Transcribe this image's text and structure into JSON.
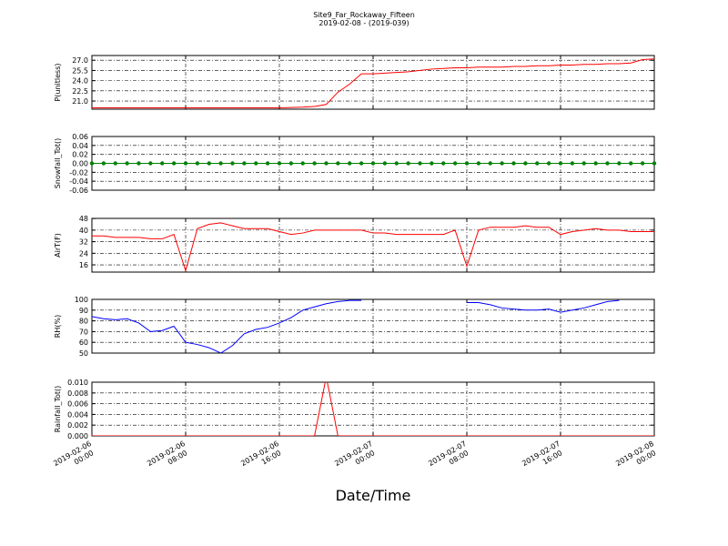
{
  "title": "Site9_Far_Rockaway_Fifteen",
  "subtitle": "2019-02-08 - (2019-039)",
  "xlabel": "Date/Time",
  "x": [
    "2019-02-06 00:00",
    "2019-02-06 01:00",
    "2019-02-06 02:00",
    "2019-02-06 03:00",
    "2019-02-06 04:00",
    "2019-02-06 05:00",
    "2019-02-06 06:00",
    "2019-02-06 07:00",
    "2019-02-06 08:00",
    "2019-02-06 09:00",
    "2019-02-06 10:00",
    "2019-02-06 11:00",
    "2019-02-06 12:00",
    "2019-02-06 13:00",
    "2019-02-06 14:00",
    "2019-02-06 15:00",
    "2019-02-06 16:00",
    "2019-02-06 17:00",
    "2019-02-06 18:00",
    "2019-02-06 19:00",
    "2019-02-06 20:00",
    "2019-02-06 21:00",
    "2019-02-06 22:00",
    "2019-02-06 23:00",
    "2019-02-07 00:00",
    "2019-02-07 01:00",
    "2019-02-07 02:00",
    "2019-02-07 03:00",
    "2019-02-07 04:00",
    "2019-02-07 05:00",
    "2019-02-07 06:00",
    "2019-02-07 07:00",
    "2019-02-07 08:00",
    "2019-02-07 09:00",
    "2019-02-07 10:00",
    "2019-02-07 11:00",
    "2019-02-07 12:00",
    "2019-02-07 13:00",
    "2019-02-07 14:00",
    "2019-02-07 15:00",
    "2019-02-07 16:00",
    "2019-02-07 17:00",
    "2019-02-07 18:00",
    "2019-02-07 19:00",
    "2019-02-07 20:00",
    "2019-02-07 21:00",
    "2019-02-07 22:00",
    "2019-02-07 23:00",
    "2019-02-08 00:00"
  ],
  "xlim": [
    "2019-02-06 00:00",
    "2019-02-08 00:00"
  ],
  "xticks": [
    {
      "value": "2019-02-06 00:00",
      "label": [
        "2019-02-06",
        "00:00"
      ]
    },
    {
      "value": "2019-02-06 08:00",
      "label": [
        "2019-02-06",
        "08:00"
      ]
    },
    {
      "value": "2019-02-06 16:00",
      "label": [
        "2019-02-06",
        "16:00"
      ]
    },
    {
      "value": "2019-02-07 00:00",
      "label": [
        "2019-02-07",
        "00:00"
      ]
    },
    {
      "value": "2019-02-07 08:00",
      "label": [
        "2019-02-07",
        "08:00"
      ]
    },
    {
      "value": "2019-02-07 16:00",
      "label": [
        "2019-02-07",
        "16:00"
      ]
    },
    {
      "value": "2019-02-08 00:00",
      "label": [
        "2019-02-08",
        "00:00"
      ]
    }
  ],
  "chart_data": [
    {
      "type": "line",
      "ylabel": "P(unitless)",
      "color": "#ff0000",
      "grid": true,
      "ylim": [
        19.8,
        27.7
      ],
      "yticks": [
        {
          "value": 21.0,
          "label": "21.0"
        },
        22.5,
        {
          "value": 24.0,
          "label": "24.0"
        },
        25.5,
        {
          "value": 27.0,
          "label": "27.0"
        }
      ],
      "values": [
        20.0,
        20.0,
        20.0,
        20.0,
        20.0,
        20.0,
        20.0,
        20.0,
        20.0,
        20.0,
        20.0,
        20.0,
        20.0,
        20.0,
        20.0,
        20.0,
        20.0,
        20.05,
        20.1,
        20.2,
        20.5,
        22.3,
        23.5,
        25.0,
        25.0,
        25.1,
        25.2,
        25.3,
        25.5,
        25.7,
        25.8,
        25.9,
        25.9,
        26.0,
        26.0,
        26.0,
        26.1,
        26.1,
        26.2,
        26.2,
        26.3,
        26.3,
        26.4,
        26.4,
        26.5,
        26.5,
        26.6,
        27.1,
        27.2
      ]
    },
    {
      "type": "line",
      "ylabel": "Snowfall_Tot()",
      "color": "#008000",
      "marker": "o",
      "grid": true,
      "ylim": [
        -0.06,
        0.06
      ],
      "yticks": [
        -0.06,
        -0.04,
        -0.02,
        {
          "value": 0,
          "label": "0.00"
        },
        0.02,
        0.04,
        0.06
      ],
      "values": [
        0,
        0,
        0,
        0,
        0,
        0,
        0,
        0,
        0,
        0,
        0,
        0,
        0,
        0,
        0,
        0,
        0,
        0,
        0,
        0,
        0,
        0,
        0,
        0,
        0,
        0,
        0,
        0,
        0,
        0,
        0,
        0,
        0,
        0,
        0,
        0,
        0,
        0,
        0,
        0,
        0,
        0,
        0,
        0,
        0,
        0,
        0,
        0,
        0
      ]
    },
    {
      "type": "line",
      "ylabel": "AirT(F)",
      "color": "#ff0000",
      "grid": true,
      "ylim": [
        11,
        48.1
      ],
      "yticks": [
        16,
        24,
        32,
        40,
        48
      ],
      "values": [
        36,
        36,
        35,
        35,
        35,
        34,
        34,
        37,
        12,
        41,
        44,
        45,
        43,
        41,
        41,
        41,
        39,
        37,
        38,
        40,
        40,
        40,
        40,
        40,
        38,
        38,
        37,
        37,
        37,
        37,
        37,
        40,
        15,
        40,
        42,
        42,
        42,
        43,
        42,
        42,
        37,
        39,
        40,
        41,
        40,
        40,
        39,
        39,
        39
      ]
    },
    {
      "type": "line",
      "ylabel": "RH(%)",
      "color": "#0000ff",
      "grid": true,
      "ylim": [
        50,
        100
      ],
      "yticks": [
        50,
        60,
        70,
        80,
        90,
        100
      ],
      "values": [
        84,
        82,
        81,
        82,
        78,
        70,
        71,
        75,
        60,
        58,
        55,
        50,
        57,
        68,
        72,
        74,
        78,
        83,
        90,
        93,
        96,
        98,
        99,
        99,
        null,
        null,
        null,
        null,
        null,
        null,
        null,
        null,
        97,
        97,
        95,
        92,
        91,
        90,
        90,
        91,
        88,
        90,
        92,
        95,
        98,
        99,
        null,
        null,
        null
      ]
    },
    {
      "type": "line",
      "ylabel": "Rainfall_Tot()",
      "color": "#ff0000",
      "grid": true,
      "ylim": [
        0,
        0.01
      ],
      "yticks": [
        {
          "value": 0,
          "label": "0.000"
        },
        {
          "value": 0.002,
          "label": "0.002"
        },
        {
          "value": 0.004,
          "label": "0.004"
        },
        {
          "value": 0.006,
          "label": "0.006"
        },
        {
          "value": 0.008,
          "label": "0.008"
        },
        {
          "value": 0.01,
          "label": "0.010"
        }
      ],
      "values": [
        0,
        0,
        0,
        0,
        0,
        0,
        0,
        0,
        0,
        0,
        0,
        0,
        0,
        0,
        0,
        0,
        0,
        0,
        0,
        0,
        0.011,
        0,
        0,
        0,
        0,
        0,
        0,
        0,
        0,
        0,
        0,
        0,
        0,
        0,
        0,
        0,
        0,
        0,
        0,
        0,
        0,
        0,
        0,
        0,
        0,
        0,
        0,
        0,
        0
      ]
    }
  ]
}
